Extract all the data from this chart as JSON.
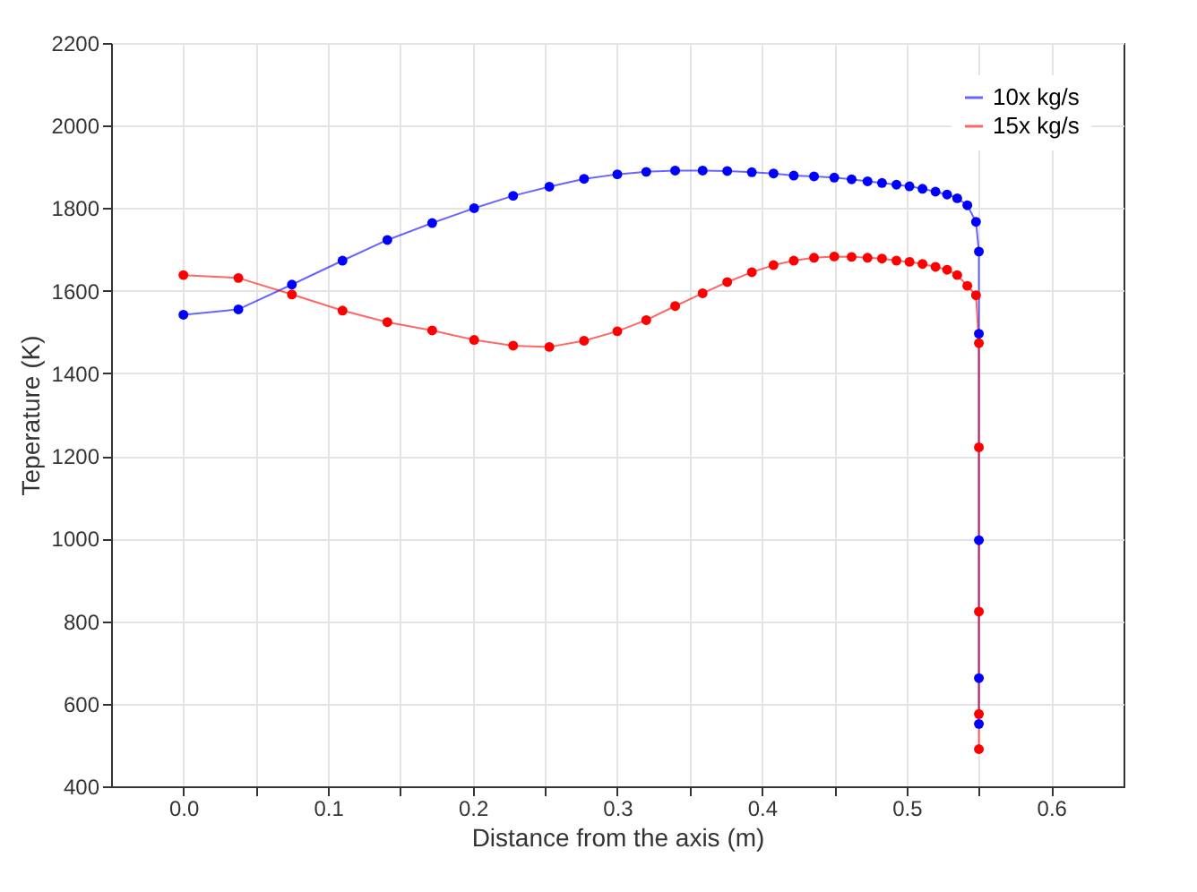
{
  "chart_data": {
    "type": "line",
    "xlabel": "Distance from the axis (m)",
    "ylabel": "Teperature (K)",
    "xlim": [
      -0.05,
      0.65
    ],
    "ylim": [
      400,
      2200
    ],
    "xticks": [
      {
        "value": 0,
        "label": "0.0"
      },
      {
        "value": 0.05,
        "label": null
      },
      {
        "value": 0.1,
        "label": "0.1"
      },
      {
        "value": 0.15,
        "label": null
      },
      {
        "value": 0.2,
        "label": "0.2"
      },
      {
        "value": 0.25,
        "label": null
      },
      {
        "value": 0.3,
        "label": "0.3"
      },
      {
        "value": 0.35,
        "label": null
      },
      {
        "value": 0.4,
        "label": "0.4"
      },
      {
        "value": 0.45,
        "label": null
      },
      {
        "value": 0.5,
        "label": "0.5"
      },
      {
        "value": 0.55,
        "label": null
      },
      {
        "value": 0.6,
        "label": "0.6"
      }
    ],
    "yticks": [
      400,
      600,
      800,
      1000,
      1200,
      1400,
      1600,
      1800,
      2000,
      2200
    ],
    "grid": true,
    "legend": "top right",
    "marker": "circle",
    "line_style": "solid",
    "series": [
      {
        "name": "10x kg/s",
        "color": "#0000ff",
        "x": [
          0,
          0.038,
          0.075,
          0.11,
          0.141,
          0.172,
          0.201,
          0.228,
          0.253,
          0.277,
          0.3,
          0.32,
          0.34,
          0.359,
          0.376,
          0.393,
          0.408,
          0.422,
          0.436,
          0.45,
          0.462,
          0.473,
          0.483,
          0.493,
          0.502,
          0.511,
          0.52,
          0.528,
          0.535,
          0.542,
          0.548,
          0.55,
          0.55,
          0.55,
          0.55,
          0.55
        ],
        "values": [
          1542,
          1555,
          1615,
          1673,
          1723,
          1764,
          1800,
          1830,
          1852,
          1871,
          1882,
          1888,
          1891,
          1891,
          1890,
          1887,
          1884,
          1879,
          1877,
          1874,
          1870,
          1865,
          1861,
          1857,
          1853,
          1847,
          1840,
          1833,
          1824,
          1807,
          1767,
          1695,
          1496,
          996,
          662,
          551
        ]
      },
      {
        "name": "15x kg/s",
        "color": "#ff0000",
        "x": [
          0,
          0.038,
          0.075,
          0.11,
          0.141,
          0.172,
          0.201,
          0.228,
          0.253,
          0.277,
          0.3,
          0.32,
          0.34,
          0.359,
          0.376,
          0.393,
          0.408,
          0.422,
          0.436,
          0.45,
          0.462,
          0.473,
          0.483,
          0.493,
          0.502,
          0.511,
          0.52,
          0.528,
          0.535,
          0.542,
          0.548,
          0.55,
          0.55,
          0.55,
          0.55,
          0.55
        ],
        "values": [
          1638,
          1631,
          1591,
          1552,
          1524,
          1504,
          1481,
          1467,
          1464,
          1479,
          1502,
          1529,
          1563,
          1594,
          1621,
          1645,
          1662,
          1673,
          1680,
          1683,
          1682,
          1680,
          1678,
          1673,
          1670,
          1665,
          1658,
          1651,
          1638,
          1612,
          1589,
          1473,
          1221,
          823,
          575,
          490
        ]
      }
    ]
  }
}
